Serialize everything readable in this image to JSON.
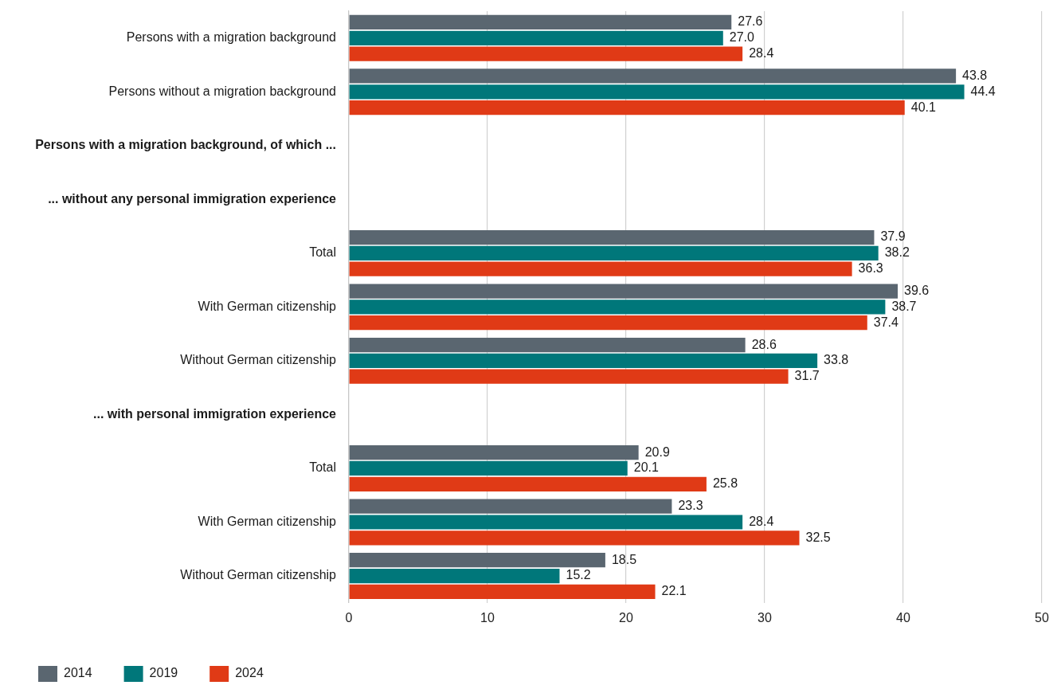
{
  "chart_data": {
    "type": "bar",
    "orientation": "horizontal",
    "categories": [
      "Persons with a migration background",
      "Persons without a migration background",
      "Persons with a migration background, of which ...",
      "... without any personal immigration experience",
      "Total",
      "With German citizenship",
      "Without German citizenship",
      "... with personal immigration experience",
      "Total",
      "With German citizenship",
      "Without German citizenship"
    ],
    "series": [
      {
        "name": "2014",
        "color": "#5a6670",
        "values": [
          27.6,
          43.8,
          null,
          null,
          37.9,
          39.6,
          28.6,
          null,
          20.9,
          23.3,
          18.5
        ],
        "value_labels": [
          "27.6",
          "43.8",
          null,
          null,
          "37.9",
          "39.6",
          "28.6",
          null,
          "20.9",
          "23.3",
          "18.5"
        ]
      },
      {
        "name": "2019",
        "color": "#00777a",
        "values": [
          27.0,
          44.4,
          null,
          null,
          38.2,
          38.7,
          33.8,
          null,
          20.1,
          28.4,
          15.2
        ],
        "value_labels": [
          "27.0",
          "44.4",
          null,
          null,
          "38.2",
          "38.7",
          "33.8",
          null,
          "20.1",
          "28.4",
          "15.2"
        ]
      },
      {
        "name": "2024",
        "color": "#e03a16",
        "values": [
          28.4,
          40.1,
          null,
          null,
          36.3,
          37.4,
          31.7,
          null,
          25.8,
          32.5,
          22.1
        ],
        "value_labels": [
          "28.4",
          "40.1",
          null,
          null,
          "36.3",
          "37.4",
          "31.7",
          null,
          "25.8",
          "32.5",
          "22.1"
        ]
      }
    ],
    "xlim": [
      0,
      50
    ],
    "xticks": [
      0,
      10,
      20,
      30,
      40,
      50
    ],
    "grid": "x",
    "legend": "bottom left"
  }
}
